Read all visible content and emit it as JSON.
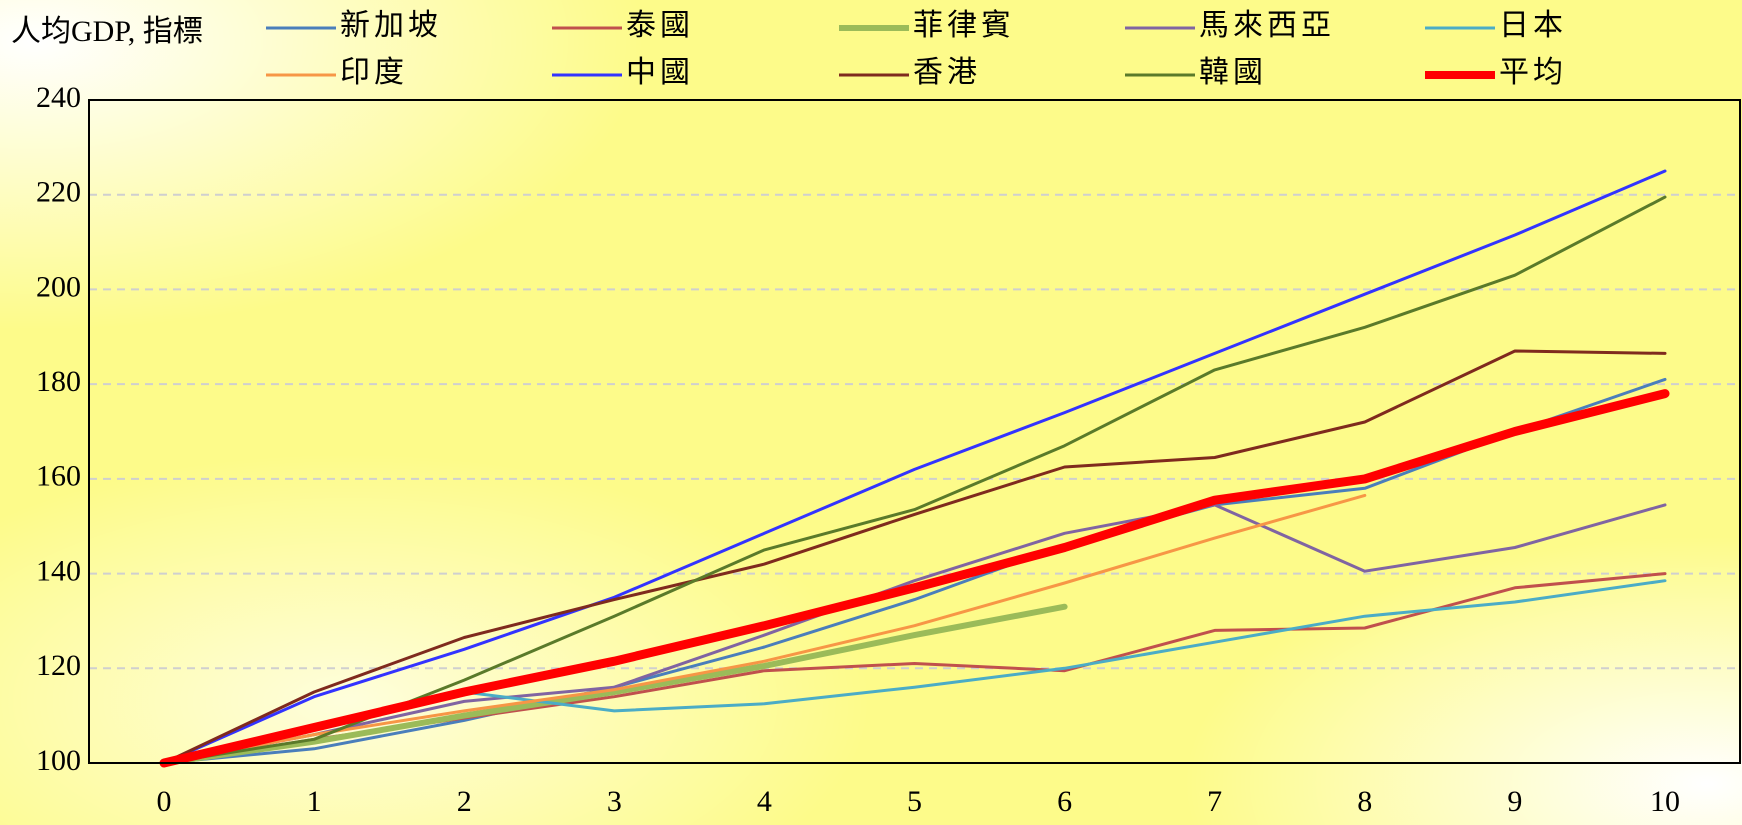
{
  "chart_data": {
    "type": "line",
    "y_label": "人均GDP, 指標",
    "x": [
      0,
      1,
      2,
      3,
      4,
      5,
      6,
      7,
      8,
      9,
      10
    ],
    "xlim": [
      -0.5,
      10.5
    ],
    "xticks": [
      0,
      1,
      2,
      3,
      4,
      5,
      6,
      7,
      8,
      9,
      10
    ],
    "ylim": [
      100,
      240
    ],
    "yticks": [
      100,
      120,
      140,
      160,
      180,
      200,
      220,
      240
    ],
    "grid": true,
    "series": [
      {
        "name": "新加坡",
        "color": "#4a7ebb",
        "width": 3,
        "values": [
          100,
          103,
          109,
          116,
          124.5,
          134.5,
          146,
          154.5,
          158,
          170,
          181
        ]
      },
      {
        "name": "泰國",
        "color": "#c0504d",
        "width": 3,
        "values": [
          100,
          105,
          109.5,
          114,
          119.5,
          121,
          119.5,
          128,
          128.5,
          137,
          140
        ]
      },
      {
        "name": "菲律賓",
        "color": "#9bbb59",
        "width": 6,
        "values": [
          100,
          104.5,
          110,
          115,
          120.5,
          127,
          133,
          null,
          null,
          null,
          null
        ]
      },
      {
        "name": "馬來西亞",
        "color": "#8064a2",
        "width": 3,
        "values": [
          100,
          106,
          113,
          116,
          127,
          138.5,
          148.5,
          154.5,
          140.5,
          145.5,
          154.5
        ]
      },
      {
        "name": "日本",
        "color": "#4bacc6",
        "width": 3,
        "values": [
          100,
          108,
          115,
          111,
          112.5,
          116,
          120,
          125.5,
          131,
          134,
          138.5
        ]
      },
      {
        "name": "印度",
        "color": "#f79646",
        "width": 3,
        "values": [
          100,
          106,
          111,
          115.5,
          121.5,
          129,
          138,
          147.5,
          156.5,
          null,
          null
        ]
      },
      {
        "name": "中國",
        "color": "#3333ff",
        "width": 3,
        "values": [
          100,
          114,
          124,
          135,
          148.5,
          162,
          174,
          186.5,
          199,
          211.5,
          225
        ]
      },
      {
        "name": "香港",
        "color": "#7f2a1e",
        "width": 3,
        "values": [
          100,
          115,
          126.5,
          134.5,
          142,
          152.5,
          162.5,
          164.5,
          172,
          187,
          186.5
        ]
      },
      {
        "name": "韓國",
        "color": "#5a7a2a",
        "width": 3,
        "values": [
          100,
          105,
          117.5,
          131,
          145,
          153.5,
          167,
          183,
          192,
          203,
          219.5
        ]
      },
      {
        "name": "平均",
        "color": "#ff0000",
        "width": 9,
        "values": [
          100,
          107.5,
          115,
          121.5,
          129,
          137,
          145.5,
          155.5,
          160,
          170,
          178
        ]
      }
    ]
  }
}
